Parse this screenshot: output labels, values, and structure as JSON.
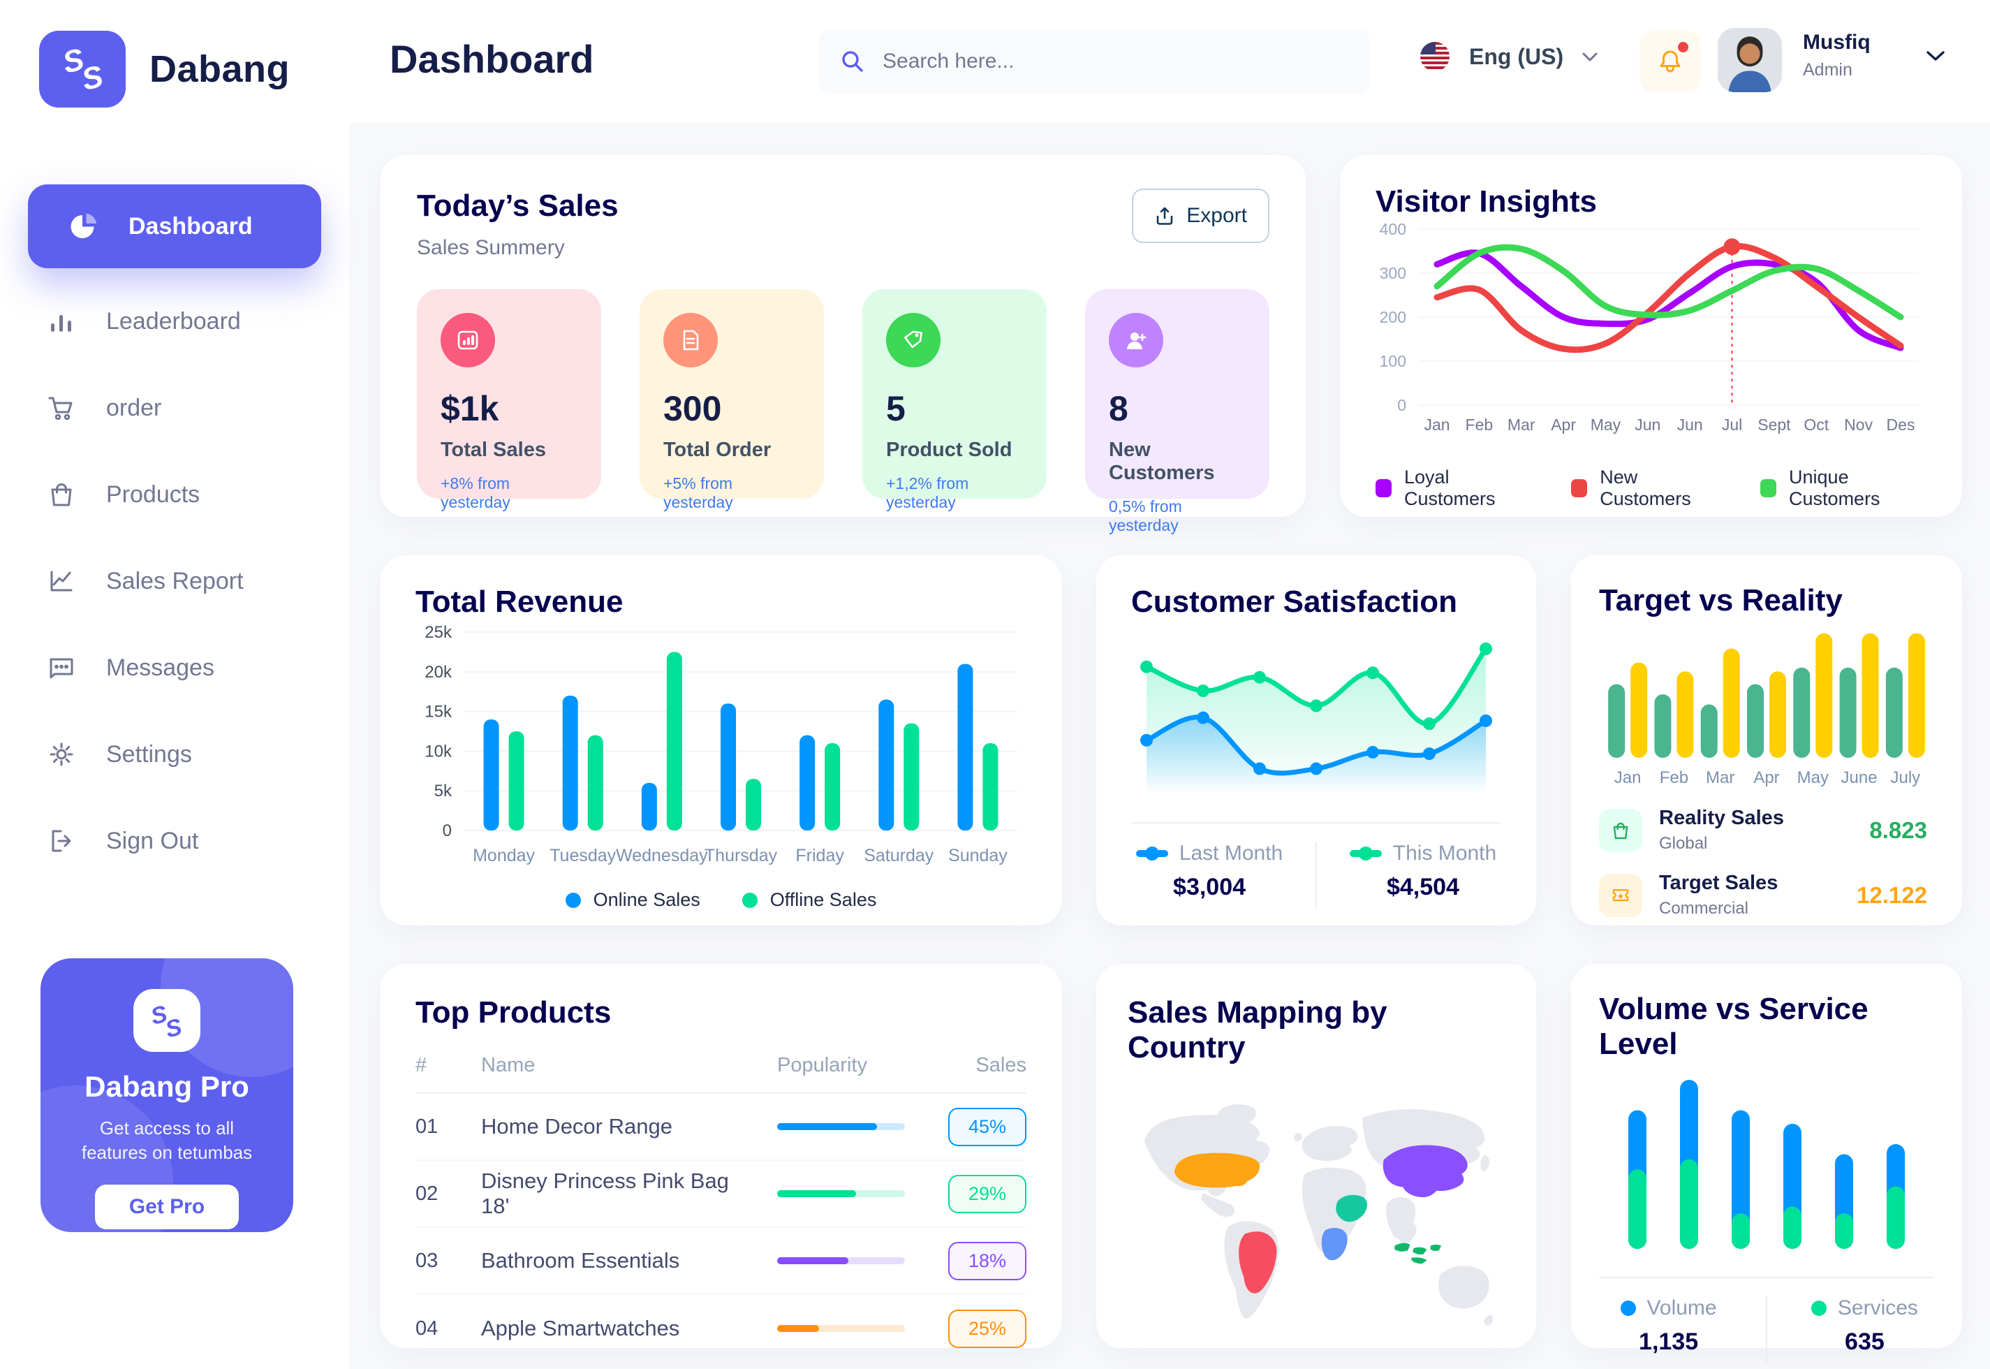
{
  "brand": {
    "name": "Dabang"
  },
  "colors": {
    "primary": "#5D5FEF",
    "heading": "#05004E",
    "page_title": "#151D48",
    "muted": "#737791",
    "delta_blue": "#4079ED"
  },
  "sidebar": {
    "items": [
      {
        "label": "Dashboard",
        "active": true
      },
      {
        "label": "Leaderboard",
        "active": false
      },
      {
        "label": "order",
        "active": false
      },
      {
        "label": "Products",
        "active": false
      },
      {
        "label": "Sales Report",
        "active": false
      },
      {
        "label": "Messages",
        "active": false
      },
      {
        "label": "Settings",
        "active": false
      },
      {
        "label": "Sign Out",
        "active": false
      }
    ],
    "pro_card": {
      "title": "Dabang Pro",
      "subtitle": "Get access to all features on tetumbas",
      "button_label": "Get Pro"
    }
  },
  "header": {
    "title": "Dashboard",
    "search_placeholder": "Search here...",
    "language": "Eng (US)",
    "user": {
      "name": "Musfiq",
      "role": "Admin"
    }
  },
  "todays_sales": {
    "title": "Today’s Sales",
    "subtitle": "Sales Summery",
    "export_label": "Export",
    "stats": [
      {
        "value": "$1k",
        "label": "Total Sales",
        "delta": "+8% from yesterday",
        "bg": "#FFE2E5",
        "icon_bg": "#FA5A7D"
      },
      {
        "value": "300",
        "label": "Total Order",
        "delta": "+5% from yesterday",
        "bg": "#FFF4DE",
        "icon_bg": "#FF947A"
      },
      {
        "value": "5",
        "label": "Product Sold",
        "delta": "+1,2% from yesterday",
        "bg": "#DCFCE7",
        "icon_bg": "#3CD856"
      },
      {
        "value": "8",
        "label": "New Customers",
        "delta": "0,5% from yesterday",
        "bg": "#F3E8FF",
        "icon_bg": "#BF83FF"
      }
    ]
  },
  "chart_data": [
    {
      "id": "visitor_insights",
      "type": "line",
      "title": "Visitor Insights",
      "x": [
        "Jan",
        "Feb",
        "Mar",
        "Apr",
        "May",
        "Jun",
        "Jun",
        "Jul",
        "Sept",
        "Oct",
        "Nov",
        "Des"
      ],
      "ylim": [
        0,
        400
      ],
      "yticks": [
        0,
        100,
        200,
        300,
        400
      ],
      "grid": true,
      "legend_position": "bottom",
      "series": [
        {
          "name": "Loyal Customers",
          "color": "#A700FF",
          "values": [
            320,
            345,
            270,
            200,
            185,
            195,
            255,
            315,
            320,
            280,
            170,
            130
          ]
        },
        {
          "name": "New Customers",
          "color": "#EF4444",
          "values": [
            245,
            262,
            170,
            128,
            140,
            210,
            300,
            360,
            335,
            270,
            200,
            135
          ]
        },
        {
          "name": "Unique Customers",
          "color": "#3CD856",
          "values": [
            270,
            345,
            355,
            305,
            225,
            205,
            215,
            260,
            305,
            310,
            260,
            200
          ]
        }
      ],
      "marker": {
        "series_index": 1,
        "point_index": 7,
        "value": 360
      }
    },
    {
      "id": "total_revenue",
      "type": "bar",
      "title": "Total Revenue",
      "categories": [
        "Monday",
        "Tuesday",
        "Wednesday",
        "Thursday",
        "Friday",
        "Saturday",
        "Sunday"
      ],
      "ylim": [
        0,
        25
      ],
      "yticks": [
        0,
        5,
        10,
        15,
        20,
        25
      ],
      "ytick_labels": [
        "0",
        "5k",
        "10k",
        "15k",
        "20k",
        "25k"
      ],
      "grid": true,
      "legend_position": "bottom",
      "series": [
        {
          "name": "Online Sales",
          "color": "#0095FF",
          "values": [
            14,
            17,
            6,
            16,
            12,
            16.5,
            21
          ]
        },
        {
          "name": "Offline Sales",
          "color": "#00E096",
          "values": [
            12.5,
            12,
            22.5,
            6.5,
            11,
            13.5,
            11
          ]
        }
      ]
    },
    {
      "id": "customer_satisfaction",
      "type": "area",
      "title": "Customer Satisfaction",
      "ylim": [
        0,
        110
      ],
      "grid": false,
      "legend_position": "bottom",
      "series": [
        {
          "name": "Last Month",
          "total": "$3,004",
          "color": "#0095FF",
          "values": [
            36,
            51,
            17,
            17,
            28,
            27,
            49
          ]
        },
        {
          "name": "This Month",
          "total": "$4,504",
          "color": "#00E096",
          "values": [
            85,
            69,
            78,
            59,
            81,
            47,
            97
          ]
        }
      ]
    },
    {
      "id": "target_vs_reality",
      "type": "bar",
      "title": "Target vs Reality",
      "categories": [
        "Jan",
        "Feb",
        "Mar",
        "Apr",
        "May",
        "June",
        "July"
      ],
      "ylim": [
        0,
        110
      ],
      "grid": false,
      "legend_position": "bottom-list",
      "series": [
        {
          "name": "Reality Sales",
          "subtitle": "Global",
          "value_label": "8.823",
          "color": "#4AB58E",
          "value_color": "#27AE60",
          "icon_bg": "#E2FFF3",
          "values": [
            58,
            50,
            42,
            58,
            71,
            71,
            71
          ]
        },
        {
          "name": "Target Sales",
          "subtitle": "Commercial",
          "value_label": "12.122",
          "color": "#FFCF00",
          "value_color": "#FFA412",
          "icon_bg": "#FFF4DE",
          "values": [
            75,
            68,
            86,
            68,
            98,
            98,
            98
          ]
        }
      ]
    },
    {
      "id": "volume_vs_service",
      "type": "stacked-bar",
      "title": "Volume vs Service Level",
      "ylim": [
        0,
        110
      ],
      "grid": false,
      "legend_position": "bottom",
      "series": [
        {
          "name": "Volume",
          "total": "1,135",
          "color": "#0095FF",
          "values": [
            35,
            47,
            61,
            49,
            35,
            25
          ]
        },
        {
          "name": "Services",
          "total": "635",
          "color": "#00E096",
          "values": [
            47,
            53,
            21,
            25,
            21,
            37
          ]
        }
      ]
    }
  ],
  "top_products": {
    "title": "Top Products",
    "columns": [
      "#",
      "Name",
      "Popularity",
      "Sales"
    ],
    "rows": [
      {
        "num": "01",
        "name": "Home Decor Range",
        "popularity": 78,
        "sales": "45%",
        "color": "#0095FF",
        "badge_bg": "#F0F9FF"
      },
      {
        "num": "02",
        "name": "Disney Princess Pink Bag 18'",
        "popularity": 62,
        "sales": "29%",
        "color": "#00E096",
        "badge_bg": "#F0FDF4"
      },
      {
        "num": "03",
        "name": "Bathroom Essentials",
        "popularity": 56,
        "sales": "18%",
        "color": "#884DFF",
        "badge_bg": "#F9F5FF"
      },
      {
        "num": "04",
        "name": "Apple Smartwatches",
        "popularity": 33,
        "sales": "25%",
        "color": "#FF8F0D",
        "badge_bg": "#FFF8EC"
      }
    ]
  },
  "sales_map": {
    "title": "Sales Mapping by Country",
    "countries": [
      {
        "name": "United States",
        "color": "#FFA412"
      },
      {
        "name": "Brazil",
        "color": "#F64E60"
      },
      {
        "name": "DR Congo",
        "color": "#6394F8"
      },
      {
        "name": "Saudi Arabia",
        "color": "#16C8A0"
      },
      {
        "name": "China",
        "color": "#8A4FFF"
      },
      {
        "name": "Indonesia",
        "color": "#12B76A"
      }
    ]
  }
}
